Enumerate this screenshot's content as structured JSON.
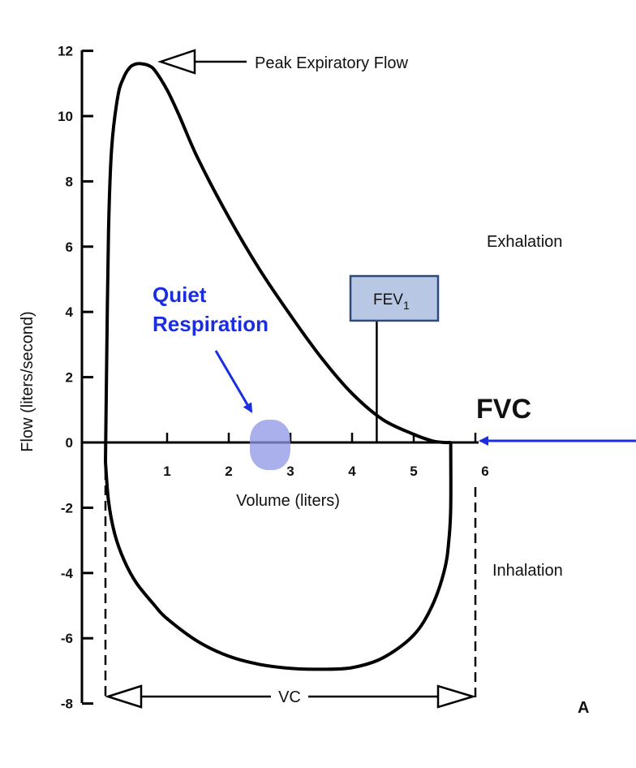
{
  "chart_data": {
    "type": "line",
    "xlabel": "Volume (liters)",
    "ylabel": "Flow (liters/second)",
    "xlim": [
      0,
      6
    ],
    "ylim": [
      -8,
      12
    ],
    "x_ticks": [
      "1",
      "2",
      "3",
      "4",
      "5",
      "6"
    ],
    "y_ticks": [
      "12",
      "10",
      "8",
      "6",
      "4",
      "2",
      "0",
      "-2",
      "-4",
      "-6",
      "-8"
    ],
    "series": [
      {
        "values_note": "",
        "x": [
          0.0,
          0.02,
          0.05,
          0.1,
          0.2,
          0.3,
          0.4,
          0.5,
          0.6,
          0.7,
          0.8,
          1.0,
          1.2,
          1.5,
          2.0,
          2.5,
          3.0,
          3.5,
          4.0,
          4.5,
          5.0,
          5.3,
          5.5,
          5.6
        ],
        "y": [
          -0.6,
          2.5,
          6.5,
          9.0,
          10.6,
          11.2,
          11.5,
          11.6,
          11.6,
          11.55,
          11.4,
          10.8,
          10.0,
          8.7,
          6.9,
          5.3,
          3.9,
          2.6,
          1.5,
          0.7,
          0.25,
          0.05,
          0.0,
          0.0
        ]
      },
      {
        "x": [
          0.0,
          0.05,
          0.15,
          0.3,
          0.5,
          0.8,
          1.0,
          1.5,
          2.0,
          2.5,
          3.0,
          3.5,
          4.0,
          4.5,
          5.0,
          5.3,
          5.5,
          5.57,
          5.6,
          5.6
        ],
        "y": [
          -0.6,
          -1.8,
          -2.8,
          -3.6,
          -4.3,
          -5.0,
          -5.4,
          -6.1,
          -6.55,
          -6.8,
          -6.92,
          -6.95,
          -6.9,
          -6.6,
          -5.9,
          -5.0,
          -3.9,
          -3.0,
          -2.0,
          0.0
        ]
      }
    ],
    "annotations": {
      "peak_expiratory_flow": "Peak Expiratory Flow",
      "exhalation": "Exhalation",
      "inhalation": "Inhalation",
      "fev1_prefix": "FEV",
      "fev1_sub": "1",
      "fev1_volume": 4.4,
      "quiet_respiration_line1": "Quiet",
      "quiet_respiration_line2": "Respiration",
      "quiet_respiration_volume": 2.5,
      "fvc": "FVC",
      "fvc_volume": 5.6,
      "vc": "VC",
      "panel_letter": "A"
    },
    "colors": {
      "curve": "#000000",
      "annotation_blue": "#1a2ee0",
      "fev_box_fill": "#b8c7e3",
      "fev_box_border": "#2e4a7d",
      "quiet_blob": "#8d95e6"
    }
  }
}
